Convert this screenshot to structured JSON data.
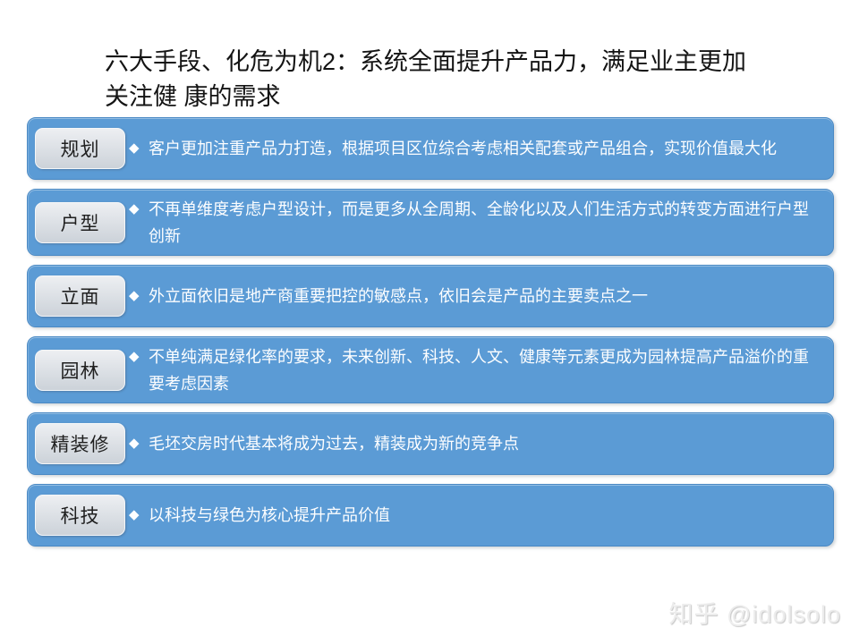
{
  "slide": {
    "title_line1": "六大手段、化危为机2：系统全面提升产品力，满足业主更加",
    "title_line2": "关注健 康的需求"
  },
  "bullet": "◆",
  "rows": [
    {
      "label": "规划",
      "text": "客户更加注重产品力打造，根据项目区位综合考虑相关配套或产品组合，实现价值最大化"
    },
    {
      "label": "户型",
      "text": "不再单维度考虑户型设计，而是更多从全周期、全龄化以及人们生活方式的转变方面进行户型创新"
    },
    {
      "label": "立面",
      "text": "外立面依旧是地产商重要把控的敏感点，依旧会是产品的主要卖点之一"
    },
    {
      "label": "园林",
      "text": "不单纯满足绿化率的要求，未来创新、科技、人文、健康等元素更成为园林提高产品溢价的重要考虑因素"
    },
    {
      "label": "精装修",
      "text": "毛坯交房时代基本将成为过去，精装成为新的竞争点"
    },
    {
      "label": "科技",
      "text": "以科技与绿色为核心提升产品价值"
    }
  ],
  "watermark": "知乎 @idolsolo",
  "colors": {
    "bar_blue": "#5B9BD5",
    "bar_border": "#4A89C4",
    "label_gray": "#D8DCE2",
    "body_text": "#FFFFFF",
    "title_text": "#141414",
    "watermark_gray": "#ECECEC"
  }
}
